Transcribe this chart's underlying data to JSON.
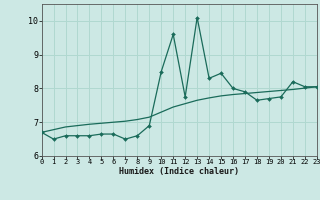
{
  "xlabel": "Humidex (Indice chaleur)",
  "background_color": "#cce8e4",
  "grid_color": "#b0d8d0",
  "line_color": "#1a6b5a",
  "x_values": [
    0,
    1,
    2,
    3,
    4,
    5,
    6,
    7,
    8,
    9,
    10,
    11,
    12,
    13,
    14,
    15,
    16,
    17,
    18,
    19,
    20,
    21,
    22,
    23
  ],
  "y_curve": [
    6.7,
    6.5,
    6.6,
    6.6,
    6.6,
    6.65,
    6.65,
    6.5,
    6.6,
    6.9,
    8.5,
    9.6,
    7.75,
    10.1,
    8.3,
    8.45,
    8.0,
    7.9,
    7.65,
    7.7,
    7.75,
    8.2,
    8.05,
    8.05
  ],
  "y_trend": [
    6.7,
    6.78,
    6.86,
    6.9,
    6.94,
    6.97,
    7.0,
    7.03,
    7.08,
    7.15,
    7.3,
    7.45,
    7.55,
    7.65,
    7.72,
    7.78,
    7.82,
    7.85,
    7.88,
    7.91,
    7.94,
    7.97,
    8.01,
    8.05
  ],
  "xlim": [
    0,
    23
  ],
  "ylim": [
    6.0,
    10.5
  ],
  "yticks": [
    6,
    7,
    8,
    9,
    10
  ],
  "xticks": [
    0,
    1,
    2,
    3,
    4,
    5,
    6,
    7,
    8,
    9,
    10,
    11,
    12,
    13,
    14,
    15,
    16,
    17,
    18,
    19,
    20,
    21,
    22,
    23
  ]
}
